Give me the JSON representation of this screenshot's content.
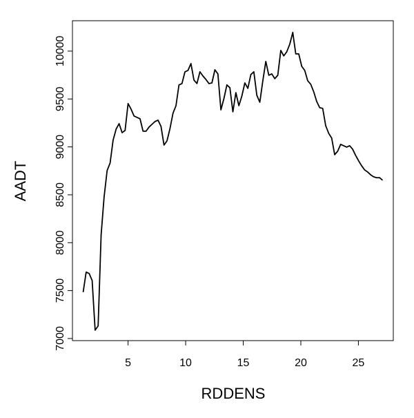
{
  "chart_data": {
    "type": "line",
    "x_label": "RDDENS",
    "y_label": "AADT",
    "x": [
      1.1,
      1.36,
      1.62,
      1.88,
      2.14,
      2.4,
      2.66,
      2.92,
      3.18,
      3.44,
      3.7,
      3.96,
      4.22,
      4.48,
      4.74,
      5.0,
      5.26,
      5.52,
      5.78,
      6.04,
      6.3,
      6.56,
      6.82,
      7.08,
      7.34,
      7.6,
      7.86,
      8.12,
      8.38,
      8.64,
      8.9,
      9.16,
      9.42,
      9.68,
      9.94,
      10.2,
      10.46,
      10.72,
      10.98,
      11.24,
      11.5,
      11.76,
      12.02,
      12.28,
      12.54,
      12.8,
      13.06,
      13.32,
      13.58,
      13.84,
      14.1,
      14.36,
      14.62,
      14.88,
      15.14,
      15.4,
      15.66,
      15.92,
      16.18,
      16.44,
      16.7,
      16.96,
      17.22,
      17.48,
      17.74,
      18.0,
      18.26,
      18.52,
      18.78,
      19.04,
      19.3,
      19.56,
      19.82,
      20.08,
      20.34,
      20.6,
      20.86,
      21.12,
      21.38,
      21.64,
      21.9,
      22.16,
      22.42,
      22.68,
      22.94,
      23.2,
      23.46,
      23.72,
      23.98,
      24.24,
      24.5,
      24.76,
      25.02,
      25.28,
      25.54,
      25.8,
      26.06,
      26.32,
      26.58,
      26.84,
      27.1
    ],
    "series": [
      {
        "color": "#000000",
        "values": [
          7484,
          7693,
          7679,
          7606,
          7087,
          7131,
          8082,
          8479,
          8753,
          8832,
          9070,
          9185,
          9243,
          9149,
          9171,
          9452,
          9394,
          9322,
          9308,
          9293,
          9164,
          9164,
          9207,
          9236,
          9265,
          9279,
          9214,
          9019,
          9063,
          9192,
          9351,
          9430,
          9647,
          9661,
          9784,
          9798,
          9870,
          9697,
          9661,
          9784,
          9740,
          9704,
          9661,
          9668,
          9805,
          9762,
          9387,
          9503,
          9647,
          9618,
          9366,
          9567,
          9430,
          9531,
          9668,
          9611,
          9755,
          9784,
          9539,
          9466,
          9690,
          9892,
          9748,
          9762,
          9712,
          9748,
          10007,
          9950,
          9993,
          10072,
          10195,
          9971,
          9971,
          9841,
          9798,
          9690,
          9654,
          9575,
          9474,
          9409,
          9402,
          9221,
          9142,
          9092,
          8919,
          8955,
          9027,
          9012,
          8998,
          9012,
          8976,
          8911,
          8854,
          8803,
          8760,
          8738,
          8709,
          8688,
          8678,
          8679,
          8652
        ]
      }
    ],
    "xlim": [
      0.17,
      28.03
    ],
    "xticks": [
      5,
      10,
      15,
      20,
      25
    ],
    "ylim": [
      6978,
      10317
    ],
    "yticks": [
      7000,
      7500,
      8000,
      8500,
      9000,
      9500,
      10000
    ]
  }
}
